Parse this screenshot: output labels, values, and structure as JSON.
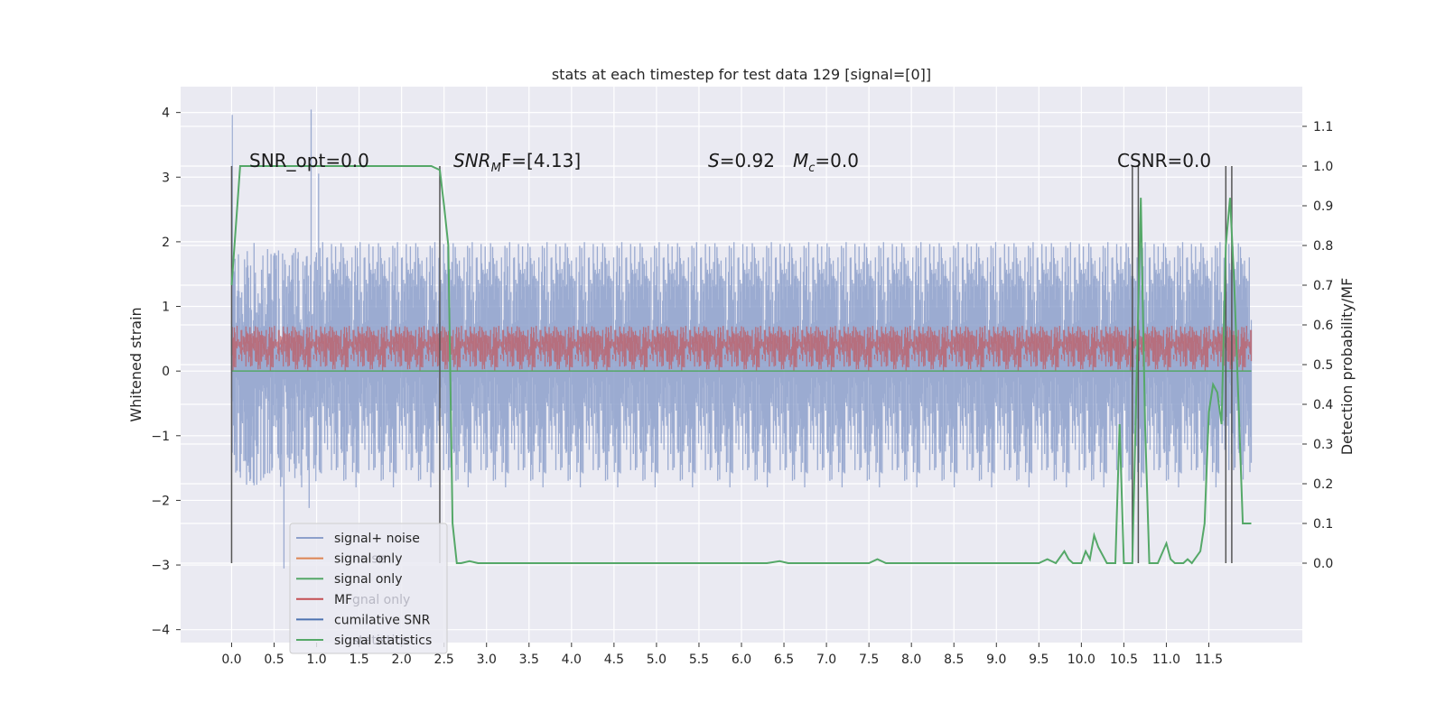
{
  "chart_data": {
    "type": "line",
    "title": "stats at each timestep for test data 129 [signal=[0]]",
    "xlabel": "",
    "ylabel_left": "Whitened strain",
    "ylabel_right": "Detection probability/MF",
    "xlim": [
      -0.6,
      12.6
    ],
    "ylim_left": [
      -4.2,
      4.4
    ],
    "ylim_right": [
      -0.2,
      1.2
    ],
    "x_ticks": [
      "0.0",
      "0.5",
      "1.0",
      "1.5",
      "2.0",
      "2.5",
      "3.0",
      "3.5",
      "4.0",
      "4.5",
      "5.0",
      "5.5",
      "6.0",
      "6.5",
      "7.0",
      "7.5",
      "8.0",
      "8.5",
      "9.0",
      "9.5",
      "10.0",
      "10.5",
      "11.0",
      "11.5"
    ],
    "y_ticks_left": [
      "4",
      "3",
      "2",
      "1",
      "0",
      "−1",
      "−2",
      "−3",
      "−4"
    ],
    "y_ticks_right": [
      "1.1",
      "1.0",
      "0.9",
      "0.8",
      "0.7",
      "0.6",
      "0.5",
      "0.4",
      "0.3",
      "0.2",
      "0.1",
      "0.0"
    ],
    "grid": true,
    "legend_position": "lower-left",
    "annotations": {
      "snr_opt": "SNR_opt=0.0",
      "snr_mf_main": "SNR",
      "snr_mf_sub": "M",
      "snr_mf_rest": "F=[4.13]",
      "s_main": "S",
      "s_rest": "=0.92",
      "mc_main": "M",
      "mc_sub": "c",
      "mc_rest": "=0.0",
      "csnr": "CSNR=0.0"
    },
    "legend": [
      {
        "label": "signal+ noise",
        "color": "#8da0cb",
        "ghost": ""
      },
      {
        "label": "signal only",
        "color": "#dd8452",
        "ghost": "noise"
      },
      {
        "label": "signal only",
        "color": "#55a868",
        "ghost": ""
      },
      {
        "label": "MF",
        "color": "#c44e52",
        "ghost": "gnal only"
      },
      {
        "label": "cumilative SNR",
        "color": "#4c72b0",
        "ghost": ""
      },
      {
        "label": "signal statistics",
        "color": "#55a868",
        "ghost": "statistics"
      }
    ],
    "series": [
      {
        "name": "signal+ noise",
        "color": "#8da0cb",
        "x_range": [
          0,
          12
        ],
        "band_typical": [
          -1.8,
          2.0
        ],
        "band_extreme": [
          -3.8,
          4.1
        ]
      },
      {
        "name": "MF",
        "color": "#c44e52",
        "x_range": [
          0,
          12
        ],
        "band_typical": [
          0.0,
          0.7
        ],
        "band_extreme": [
          0.0,
          1.0
        ]
      },
      {
        "name": "signal only",
        "color": "#55a868",
        "x": [
          0,
          12
        ],
        "y": [
          0,
          0
        ]
      },
      {
        "name": "signal statistics",
        "color": "#55a868",
        "x": [
          0.0,
          0.05,
          0.1,
          0.2,
          0.5,
          1.0,
          1.5,
          2.0,
          2.2,
          2.35,
          2.45,
          2.5,
          2.55,
          2.6,
          2.65,
          2.7,
          2.8,
          2.9,
          3.0,
          3.5,
          4.0,
          4.5,
          5.0,
          5.5,
          6.0,
          6.3,
          6.45,
          6.55,
          7.0,
          7.5,
          7.6,
          7.7,
          7.8,
          8.0,
          8.5,
          9.0,
          9.5,
          9.6,
          9.7,
          9.8,
          9.85,
          9.9,
          10.0,
          10.05,
          10.1,
          10.15,
          10.2,
          10.3,
          10.4,
          10.45,
          10.5,
          10.6,
          10.7,
          10.75,
          10.8,
          10.9,
          11.0,
          11.05,
          11.1,
          11.2,
          11.25,
          11.3,
          11.4,
          11.45,
          11.5,
          11.55,
          11.6,
          11.65,
          11.7,
          11.75,
          11.8,
          11.9,
          12.0
        ],
        "y": [
          0.7,
          0.85,
          1.0,
          1.0,
          1.0,
          1.0,
          1.0,
          1.0,
          1.0,
          1.0,
          0.99,
          0.9,
          0.8,
          0.1,
          0.0,
          0.0,
          0.005,
          0.0,
          0.0,
          0.0,
          0.0,
          0.0,
          0.0,
          0.0,
          0.0,
          0.0,
          0.005,
          0.0,
          0.0,
          0.0,
          0.01,
          0.0,
          0.0,
          0.0,
          0.0,
          0.0,
          0.0,
          0.01,
          0.0,
          0.03,
          0.01,
          0.0,
          0.0,
          0.03,
          0.01,
          0.07,
          0.04,
          0.0,
          0.0,
          0.35,
          0.0,
          0.0,
          0.92,
          0.35,
          0.0,
          0.0,
          0.05,
          0.01,
          0.0,
          0.0,
          0.01,
          0.0,
          0.03,
          0.1,
          0.38,
          0.45,
          0.43,
          0.35,
          0.8,
          0.92,
          0.7,
          0.1,
          0.1
        ]
      },
      {
        "name": "marker lines",
        "color": "#555555",
        "x": [
          0.0,
          2.45,
          10.6,
          10.67,
          11.7,
          11.77
        ]
      }
    ]
  }
}
